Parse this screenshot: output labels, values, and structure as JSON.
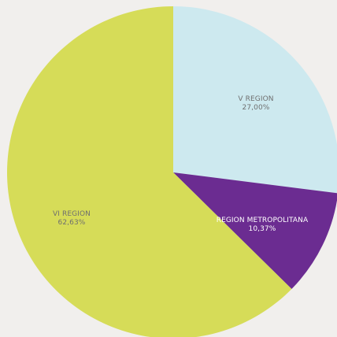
{
  "chart_data": {
    "type": "pie",
    "title": "",
    "legend": "none",
    "slices": [
      {
        "label": "V REGION",
        "value": 27.0,
        "value_text": "27,00%",
        "color": "#cde9ef",
        "label_color": "#6f6f6f"
      },
      {
        "label": "REGION METROPOLITANA",
        "value": 10.37,
        "value_text": "10,37%",
        "color": "#6b2c91",
        "label_color": "#ffffff"
      },
      {
        "label": "VI REGION",
        "value": 62.63,
        "value_text": "62,63%",
        "color": "#d6dc58",
        "label_color": "#6f6f6f"
      }
    ]
  }
}
